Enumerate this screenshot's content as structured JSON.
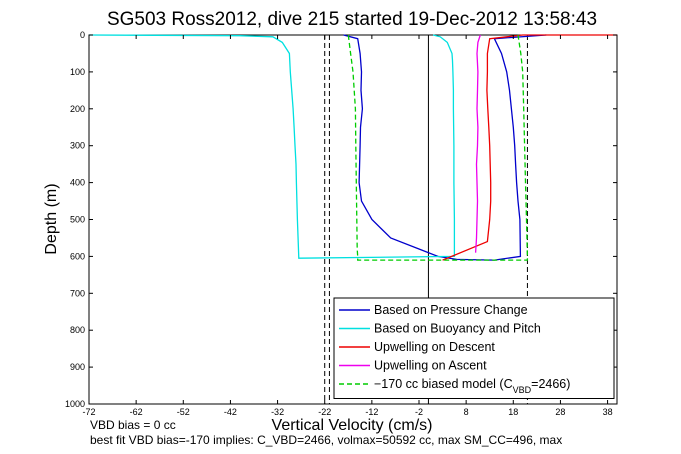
{
  "chart_data": {
    "type": "line",
    "title": "SG503 Ross2012, dive 215 started 19-Dec-2012 13:58:43",
    "xlabel": "Vertical Velocity (cm/s)",
    "ylabel": "Depth (m)",
    "xlim": [
      -72,
      40
    ],
    "ylim": [
      1000,
      0
    ],
    "y_reversed": true,
    "grid": false,
    "legend_position": "bottom-right",
    "x_ticks": [
      -72,
      -62,
      -52,
      -42,
      -32,
      -22,
      -12,
      -2,
      8,
      18,
      28,
      38
    ],
    "x_tick_labels": [
      "-72",
      "-62",
      "-52",
      "-42",
      "-32",
      "-22",
      "-12",
      "-2",
      "8",
      "18",
      "28",
      "38"
    ],
    "y_ticks": [
      0,
      100,
      200,
      300,
      400,
      500,
      600,
      700,
      800,
      900,
      1000
    ],
    "y_tick_labels": [
      "0",
      "100",
      "200",
      "300",
      "400",
      "500",
      "600",
      "700",
      "800",
      "900",
      "1000"
    ],
    "series": [
      {
        "name": "Based on Pressure Change",
        "color": "#0000cc",
        "dash": "solid",
        "x": [
          -18,
          -15,
          -14.5,
          -14.2,
          -14.3,
          -14.0,
          -14.4,
          -14.5,
          -14.6,
          -14.7,
          -14.2,
          -12,
          -8,
          -2,
          2,
          6,
          14,
          19.5,
          19.4,
          19.0,
          18.7,
          18.5,
          18.3,
          18.0,
          17.6,
          17.2,
          16.6,
          15.5,
          14,
          25
        ],
        "y": [
          0,
          10,
          50,
          100,
          150,
          200,
          250,
          300,
          350,
          400,
          450,
          500,
          550,
          580,
          600,
          608,
          610,
          600,
          500,
          450,
          400,
          350,
          300,
          250,
          200,
          150,
          100,
          50,
          10,
          0
        ]
      },
      {
        "name": "Based on Buoyancy and Pitch",
        "color": "#00e0e0",
        "dash": "solid",
        "x": [
          -72,
          -40,
          -33,
          -31,
          -29.5,
          -29.3,
          -29.0,
          -28.7,
          -28.5,
          -28.3,
          -28.1,
          -28.0,
          -27.9,
          -27.8,
          -27.5,
          5.5,
          5.5,
          5.4,
          5.4,
          5.3,
          5.3,
          5.2,
          5.1,
          5.0,
          4.0,
          2.5,
          1.0
        ],
        "y": [
          0,
          2,
          5,
          20,
          50,
          100,
          150,
          200,
          250,
          300,
          350,
          400,
          450,
          500,
          605,
          600,
          500,
          400,
          300,
          200,
          150,
          100,
          70,
          50,
          20,
          5,
          0
        ]
      },
      {
        "name": "Upwelling on Descent",
        "color": "#ee0000",
        "dash": "solid",
        "x": [
          40,
          20,
          13,
          12.5,
          12.5,
          12.4,
          12.6,
          12.8,
          13.0,
          13.1,
          13.2,
          13.2,
          13.0,
          12.5,
          3.0
        ],
        "y": [
          0,
          0,
          10,
          50,
          100,
          150,
          200,
          250,
          300,
          350,
          400,
          450,
          500,
          560,
          610
        ]
      },
      {
        "name": "Upwelling on Ascent",
        "color": "#ee00ee",
        "dash": "solid",
        "x": [
          11.0,
          10.5,
          10.3,
          10.5,
          10.4,
          10.3,
          10.5,
          10.4,
          10.2,
          10.3,
          10.4,
          10.3,
          10.2,
          10.0
        ],
        "y": [
          0,
          20,
          50,
          100,
          150,
          200,
          250,
          300,
          350,
          400,
          450,
          500,
          550,
          590
        ]
      },
      {
        "name": "−170 cc biased model (C_VBD=2466)",
        "color": "#00cc00",
        "dash": "dashed",
        "x": [
          -17,
          -16.5,
          -16,
          -15.5,
          -15.4,
          -15.3,
          -15.2,
          -15.1,
          -15.0,
          -15.0,
          21.0,
          21.0,
          20.8,
          20.6,
          20.4,
          20.2,
          20.0,
          19.6,
          19.0
        ],
        "y": [
          0,
          50,
          100,
          200,
          300,
          400,
          500,
          580,
          600,
          610,
          610,
          600,
          500,
          400,
          300,
          200,
          100,
          50,
          0
        ]
      }
    ],
    "reference_lines": [
      {
        "x": -22,
        "style": "dashed"
      },
      {
        "x": -21,
        "style": "dashed"
      },
      {
        "x": 0,
        "style": "solid"
      },
      {
        "x": 21,
        "style": "dashed"
      }
    ]
  },
  "footer": {
    "line1": "VBD bias = 0 cc",
    "line2": "best fit VBD bias=-170 implies: C_VBD=2466, volmax=50592 cc, max SM_CC=496, max"
  },
  "colors": {
    "background": "#ffffff",
    "axes": "#000000"
  }
}
